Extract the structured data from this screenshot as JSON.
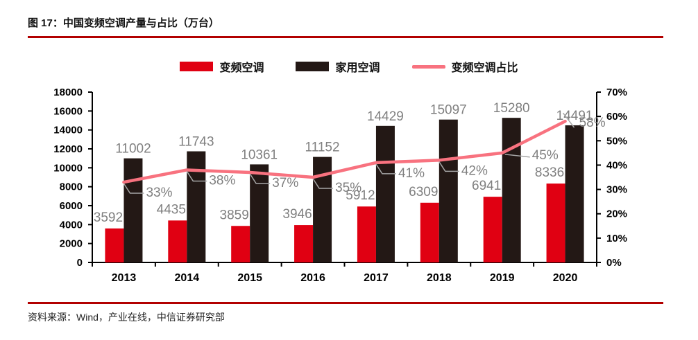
{
  "figure": {
    "title": "图 17：中国变频空调产量与占比（万台）",
    "source": "资料来源：Wind，产业在线，中信证券研究部"
  },
  "colors": {
    "rule": "#b20000",
    "bar_inverter": "#e00012",
    "bar_household": "#231815",
    "line_share": "#f8727f",
    "data_label": "#7f7f7f",
    "leader_line": "#a6a6a6",
    "axis": "#000000"
  },
  "chart_data": {
    "type": "bar",
    "subtype": "grouped bars with secondary-axis line (dual axis combo)",
    "title": "中国变频空调产量与占比（万台）",
    "categories": [
      "2013",
      "2014",
      "2015",
      "2016",
      "2017",
      "2018",
      "2019",
      "2020"
    ],
    "series": [
      {
        "name": "变频空调",
        "type": "bar",
        "axis": "left",
        "values": [
          3592,
          4435,
          3859,
          3946,
          5912,
          6309,
          6941,
          8336
        ]
      },
      {
        "name": "家用空调",
        "type": "bar",
        "axis": "left",
        "values": [
          11002,
          11743,
          10361,
          11152,
          14429,
          15097,
          15280,
          14491
        ]
      },
      {
        "name": "变频空调占比",
        "type": "line",
        "axis": "right",
        "values_percent": [
          33,
          38,
          37,
          35,
          41,
          42,
          45,
          58
        ],
        "labels": [
          "33%",
          "38%",
          "37%",
          "35%",
          "41%",
          "42%",
          "45%",
          "58%"
        ]
      }
    ],
    "left_axis": {
      "min": 0,
      "max": 18000,
      "step": 2000,
      "tick_labels": [
        "0",
        "2000",
        "4000",
        "6000",
        "8000",
        "10000",
        "12000",
        "14000",
        "16000",
        "18000"
      ]
    },
    "right_axis": {
      "min": 0,
      "max": 70,
      "step": 10,
      "tick_labels": [
        "0%",
        "10%",
        "20%",
        "30%",
        "40%",
        "50%",
        "60%",
        "70%"
      ]
    },
    "legend_position": "top",
    "gridlines": false
  }
}
